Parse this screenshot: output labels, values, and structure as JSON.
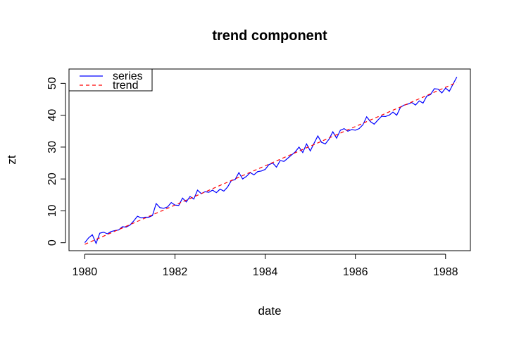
{
  "chart_data": {
    "type": "line",
    "title": "trend component",
    "xlabel": "date",
    "ylabel": "zt",
    "xlim": [
      1979.65,
      1988.55
    ],
    "ylim": [
      -2.5,
      54.5
    ],
    "xticks": [
      1980,
      1982,
      1984,
      1986,
      1988
    ],
    "yticks": [
      0,
      10,
      20,
      30,
      40,
      50
    ],
    "grid": false,
    "legend": {
      "placement": "top-left"
    },
    "series": [
      {
        "name": "series",
        "color": "#0000ff",
        "style": "solid",
        "x": [
          1980.0,
          1980.083,
          1980.167,
          1980.25,
          1980.333,
          1980.417,
          1980.5,
          1980.583,
          1980.667,
          1980.75,
          1980.833,
          1980.917,
          1981.0,
          1981.083,
          1981.167,
          1981.25,
          1981.333,
          1981.417,
          1981.5,
          1981.583,
          1981.667,
          1981.75,
          1981.833,
          1981.917,
          1982.0,
          1982.083,
          1982.167,
          1982.25,
          1982.333,
          1982.417,
          1982.5,
          1982.583,
          1982.667,
          1982.75,
          1982.833,
          1982.917,
          1983.0,
          1983.083,
          1983.167,
          1983.25,
          1983.333,
          1983.417,
          1983.5,
          1983.583,
          1983.667,
          1983.75,
          1983.833,
          1983.917,
          1984.0,
          1984.083,
          1984.167,
          1984.25,
          1984.333,
          1984.417,
          1984.5,
          1984.583,
          1984.667,
          1984.75,
          1984.833,
          1984.917,
          1985.0,
          1985.083,
          1985.167,
          1985.25,
          1985.333,
          1985.417,
          1985.5,
          1985.583,
          1985.667,
          1985.75,
          1985.833,
          1985.917,
          1986.0,
          1986.083,
          1986.167,
          1986.25,
          1986.333,
          1986.417,
          1986.5,
          1986.583,
          1986.667,
          1986.75,
          1986.833,
          1986.917,
          1987.0,
          1987.083,
          1987.167,
          1987.25,
          1987.333,
          1987.417,
          1987.5,
          1987.583,
          1987.667,
          1987.75,
          1987.833,
          1987.917,
          1988.0,
          1988.083,
          1988.167,
          1988.25
        ],
        "y": [
          0.0,
          1.5,
          2.5,
          -0.2,
          3.0,
          3.3,
          2.8,
          3.5,
          3.8,
          4.0,
          5.0,
          4.9,
          5.5,
          6.8,
          8.3,
          7.8,
          8.0,
          8.0,
          8.5,
          12.3,
          11.0,
          10.8,
          11.2,
          12.6,
          11.8,
          11.7,
          14.0,
          12.8,
          14.5,
          13.7,
          16.5,
          15.4,
          16.0,
          15.8,
          16.5,
          15.7,
          16.8,
          16.2,
          17.5,
          19.5,
          19.8,
          22.0,
          20.0,
          20.8,
          22.0,
          21.3,
          22.3,
          22.5,
          23.0,
          24.5,
          25.0,
          23.7,
          25.8,
          25.5,
          26.5,
          27.5,
          28.5,
          30.0,
          28.3,
          31.0,
          28.8,
          31.2,
          33.5,
          31.5,
          31.0,
          32.5,
          34.8,
          32.8,
          35.3,
          35.8,
          35.0,
          35.5,
          35.3,
          35.8,
          37.0,
          39.5,
          38.0,
          37.2,
          38.5,
          39.7,
          39.6,
          40.0,
          41.0,
          40.0,
          42.5,
          43.2,
          43.5,
          44.0,
          43.2,
          44.5,
          43.8,
          46.0,
          46.5,
          48.3,
          48.2,
          47.0,
          48.5,
          47.5,
          49.8,
          52.0
        ]
      },
      {
        "name": "trend",
        "color": "#ff0000",
        "style": "dashed",
        "x": [
          1980.0,
          1988.25
        ],
        "y": [
          -0.5,
          50.3
        ]
      }
    ]
  }
}
